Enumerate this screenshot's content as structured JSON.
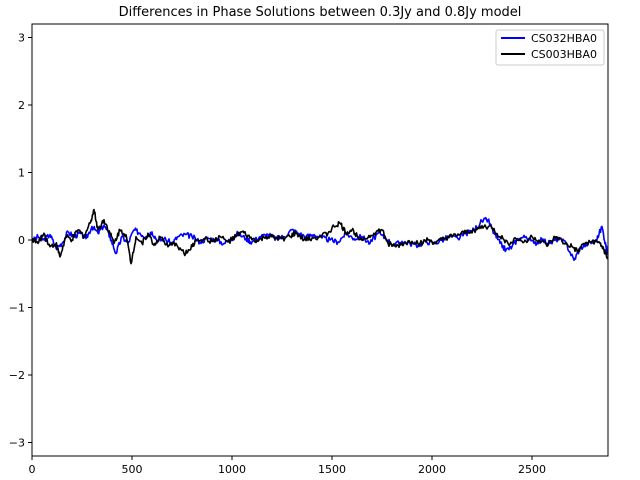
{
  "chart_data": {
    "type": "line",
    "title": "Differences in Phase Solutions between 0.3Jy and 0.8Jy model",
    "xlabel": "",
    "ylabel": "",
    "xlim": [
      0,
      2880
    ],
    "ylim": [
      -3.2,
      3.2
    ],
    "x_ticks": [
      0,
      500,
      1000,
      1500,
      2000,
      2500
    ],
    "x_tick_labels": [
      "0",
      "500",
      "1000",
      "1500",
      "2000",
      "2500"
    ],
    "y_ticks": [
      -3,
      -2,
      -1,
      0,
      1,
      2,
      3
    ],
    "y_tick_labels": [
      "−3",
      "−2",
      "−1",
      "0",
      "1",
      "2",
      "3"
    ],
    "grid": false,
    "legend_position": "top-right",
    "series": [
      {
        "name": "CS032HBA0",
        "color": "#0000ff",
        "points": [
          [
            0,
            -0.02
          ],
          [
            30,
            0.05
          ],
          [
            60,
            0.0
          ],
          [
            90,
            0.08
          ],
          [
            120,
            -0.12
          ],
          [
            150,
            -0.05
          ],
          [
            180,
            0.12
          ],
          [
            210,
            0.05
          ],
          [
            240,
            0.1
          ],
          [
            270,
            0.02
          ],
          [
            300,
            0.2
          ],
          [
            330,
            0.1
          ],
          [
            360,
            0.22
          ],
          [
            390,
            0.05
          ],
          [
            420,
            -0.2
          ],
          [
            450,
            0.05
          ],
          [
            480,
            -0.05
          ],
          [
            510,
            0.15
          ],
          [
            540,
            0.1
          ],
          [
            570,
            0.05
          ],
          [
            600,
            0.12
          ],
          [
            630,
            -0.02
          ],
          [
            660,
            0.02
          ],
          [
            700,
            -0.05
          ],
          [
            730,
            0.05
          ],
          [
            770,
            0.08
          ],
          [
            800,
            0.05
          ],
          [
            840,
            -0.03
          ],
          [
            880,
            0.03
          ],
          [
            920,
            0.0
          ],
          [
            960,
            -0.05
          ],
          [
            1000,
            0.02
          ],
          [
            1030,
            0.1
          ],
          [
            1070,
            0.02
          ],
          [
            1100,
            -0.03
          ],
          [
            1140,
            0.05
          ],
          [
            1180,
            0.08
          ],
          [
            1220,
            0.02
          ],
          [
            1260,
            0.05
          ],
          [
            1300,
            0.15
          ],
          [
            1330,
            0.1
          ],
          [
            1370,
            0.05
          ],
          [
            1410,
            0.08
          ],
          [
            1450,
            0.03
          ],
          [
            1490,
            0.0
          ],
          [
            1530,
            -0.03
          ],
          [
            1570,
            0.1
          ],
          [
            1610,
            0.02
          ],
          [
            1650,
            0.05
          ],
          [
            1690,
            -0.05
          ],
          [
            1730,
            0.1
          ],
          [
            1770,
            0.02
          ],
          [
            1810,
            -0.08
          ],
          [
            1850,
            -0.02
          ],
          [
            1890,
            -0.05
          ],
          [
            1930,
            -0.08
          ],
          [
            1970,
            -0.02
          ],
          [
            2010,
            -0.05
          ],
          [
            2050,
            0.0
          ],
          [
            2090,
            0.05
          ],
          [
            2130,
            0.02
          ],
          [
            2170,
            0.1
          ],
          [
            2210,
            0.15
          ],
          [
            2250,
            0.28
          ],
          [
            2280,
            0.3
          ],
          [
            2310,
            0.1
          ],
          [
            2340,
            -0.05
          ],
          [
            2370,
            -0.15
          ],
          [
            2400,
            -0.1
          ],
          [
            2430,
            0.02
          ],
          [
            2470,
            0.05
          ],
          [
            2510,
            -0.05
          ],
          [
            2550,
            0.0
          ],
          [
            2590,
            -0.05
          ],
          [
            2630,
            0.02
          ],
          [
            2670,
            -0.05
          ],
          [
            2710,
            -0.3
          ],
          [
            2740,
            -0.12
          ],
          [
            2780,
            -0.05
          ],
          [
            2820,
            -0.02
          ],
          [
            2850,
            0.2
          ],
          [
            2870,
            -0.1
          ],
          [
            2880,
            -0.2
          ]
        ]
      },
      {
        "name": "CS003HBA0",
        "color": "#000000",
        "points": [
          [
            0,
            0.02
          ],
          [
            30,
            -0.05
          ],
          [
            60,
            0.1
          ],
          [
            90,
            -0.1
          ],
          [
            120,
            -0.05
          ],
          [
            140,
            -0.25
          ],
          [
            170,
            0.05
          ],
          [
            200,
            0.0
          ],
          [
            230,
            0.15
          ],
          [
            260,
            0.05
          ],
          [
            290,
            0.25
          ],
          [
            310,
            0.45
          ],
          [
            330,
            0.15
          ],
          [
            360,
            0.3
          ],
          [
            390,
            0.1
          ],
          [
            410,
            -0.05
          ],
          [
            440,
            0.15
          ],
          [
            470,
            0.08
          ],
          [
            495,
            -0.35
          ],
          [
            520,
            0.05
          ],
          [
            550,
            -0.05
          ],
          [
            580,
            0.1
          ],
          [
            610,
            -0.08
          ],
          [
            640,
            0.05
          ],
          [
            680,
            -0.1
          ],
          [
            720,
            -0.05
          ],
          [
            760,
            -0.2
          ],
          [
            790,
            -0.15
          ],
          [
            820,
            0.0
          ],
          [
            860,
            0.02
          ],
          [
            900,
            -0.02
          ],
          [
            940,
            0.05
          ],
          [
            980,
            -0.03
          ],
          [
            1020,
            0.05
          ],
          [
            1050,
            0.12
          ],
          [
            1090,
            0.03
          ],
          [
            1130,
            -0.02
          ],
          [
            1170,
            0.05
          ],
          [
            1210,
            0.03
          ],
          [
            1250,
            0.02
          ],
          [
            1290,
            0.05
          ],
          [
            1320,
            0.1
          ],
          [
            1360,
            0.0
          ],
          [
            1400,
            0.03
          ],
          [
            1440,
            0.05
          ],
          [
            1480,
            0.1
          ],
          [
            1510,
            0.2
          ],
          [
            1540,
            0.25
          ],
          [
            1570,
            0.1
          ],
          [
            1600,
            0.15
          ],
          [
            1630,
            0.05
          ],
          [
            1670,
            0.02
          ],
          [
            1710,
            0.1
          ],
          [
            1750,
            0.15
          ],
          [
            1780,
            -0.05
          ],
          [
            1820,
            -0.1
          ],
          [
            1860,
            -0.05
          ],
          [
            1900,
            -0.02
          ],
          [
            1940,
            -0.05
          ],
          [
            1980,
            0.0
          ],
          [
            2020,
            -0.05
          ],
          [
            2060,
            0.02
          ],
          [
            2100,
            0.05
          ],
          [
            2140,
            0.08
          ],
          [
            2180,
            0.12
          ],
          [
            2220,
            0.15
          ],
          [
            2260,
            0.2
          ],
          [
            2300,
            0.18
          ],
          [
            2340,
            0.05
          ],
          [
            2380,
            -0.05
          ],
          [
            2420,
            0.02
          ],
          [
            2460,
            -0.03
          ],
          [
            2500,
            0.05
          ],
          [
            2540,
            -0.02
          ],
          [
            2580,
            -0.08
          ],
          [
            2620,
            0.05
          ],
          [
            2660,
            -0.05
          ],
          [
            2700,
            -0.1
          ],
          [
            2730,
            -0.18
          ],
          [
            2760,
            -0.05
          ],
          [
            2800,
            -0.02
          ],
          [
            2840,
            -0.05
          ],
          [
            2860,
            -0.15
          ],
          [
            2880,
            -0.28
          ]
        ]
      }
    ]
  }
}
